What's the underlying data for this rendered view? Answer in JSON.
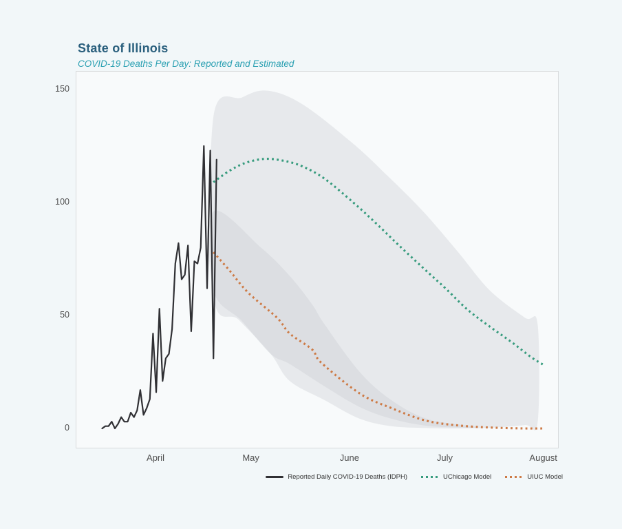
{
  "page": {
    "title": "State of Illinois",
    "subtitle": "COVID-19 Deaths Per Day: Reported and Estimated",
    "colors": {
      "background": "#f2f7f9",
      "panel_background": "#f8fafb",
      "panel_border": "#d8dadc",
      "title_text": "#2a5f7d",
      "subtitle_text": "#2ba0b2",
      "axis_text": "#4f4f4f",
      "legend_text": "#333333",
      "reported_line": "#303034",
      "uchicago_line": "#369b7d",
      "uiuc_line": "#cd7a45",
      "band_fill": "#c4c6cc"
    }
  },
  "chart_data": {
    "type": "line",
    "title": "State of Illinois",
    "subtitle": "COVID-19 Deaths Per Day: Reported and Estimated",
    "x_unit": "days since March 15, 2020",
    "grid": false,
    "legend_position": "bottom-right",
    "x_axis": {
      "ticks": [
        {
          "label": "April",
          "day": 17
        },
        {
          "label": "May",
          "day": 47
        },
        {
          "label": "June",
          "day": 78
        },
        {
          "label": "July",
          "day": 108
        },
        {
          "label": "August",
          "day": 139
        }
      ]
    },
    "y_axis": {
      "ticks": [
        0,
        50,
        100,
        150
      ],
      "range": [
        0,
        158
      ]
    },
    "series": [
      {
        "name": "Reported Daily COVID-19 Deaths (IDPH)",
        "style": "solid",
        "color": "#303034",
        "start_day": 0,
        "step": 1,
        "values": [
          0,
          1,
          1,
          3,
          0,
          2,
          5,
          3,
          3,
          7,
          5,
          8,
          17,
          6,
          9,
          13,
          42,
          16,
          53,
          21,
          31,
          33,
          44,
          73,
          82,
          66,
          68,
          81,
          43,
          74,
          73,
          80,
          125,
          62,
          123,
          31,
          119
        ]
      },
      {
        "name": "UChicago Model",
        "style": "dotted",
        "color": "#369b7d",
        "points": [
          [
            35,
            109
          ],
          [
            40,
            114
          ],
          [
            45,
            117.5
          ],
          [
            51,
            119.3
          ],
          [
            57,
            118.5
          ],
          [
            63,
            116
          ],
          [
            70,
            110.5
          ],
          [
            79,
            100
          ],
          [
            86,
            91
          ],
          [
            93,
            81.5
          ],
          [
            101,
            71
          ],
          [
            108,
            62
          ],
          [
            115,
            52.5
          ],
          [
            122,
            45
          ],
          [
            129,
            38
          ],
          [
            135,
            31.5
          ],
          [
            139,
            28
          ]
        ]
      },
      {
        "name": "UIUC Model",
        "style": "dotted",
        "color": "#cd7a45",
        "points": [
          [
            35,
            78
          ],
          [
            40,
            70
          ],
          [
            46,
            60
          ],
          [
            55,
            49
          ],
          [
            59,
            42
          ],
          [
            66,
            35
          ],
          [
            69,
            29
          ],
          [
            81,
            15.5
          ],
          [
            91,
            9
          ],
          [
            102,
            3.4
          ],
          [
            113,
            1.2
          ],
          [
            124,
            0.3
          ],
          [
            133,
            0
          ],
          [
            139,
            0
          ]
        ]
      }
    ],
    "bands": [
      {
        "name": "UChicago Model uncertainty band",
        "color": "#c4c6cc",
        "opacity": 0.32,
        "upper": [
          [
            35,
            138
          ],
          [
            44,
            146.5
          ],
          [
            52,
            149.5
          ],
          [
            63,
            143.5
          ],
          [
            79,
            126
          ],
          [
            90,
            111.5
          ],
          [
            101,
            96
          ],
          [
            112,
            78
          ],
          [
            122,
            61
          ],
          [
            133,
            49
          ],
          [
            137,
            46
          ]
        ],
        "lower": [
          [
            35,
            59
          ],
          [
            43,
            48
          ],
          [
            53,
            33
          ],
          [
            59,
            21
          ],
          [
            70,
            12.5
          ],
          [
            81,
            4.3
          ],
          [
            91,
            1
          ],
          [
            102,
            0.2
          ],
          [
            112,
            0
          ],
          [
            122,
            0.3
          ],
          [
            133,
            1.5
          ],
          [
            137,
            2.7
          ]
        ]
      },
      {
        "name": "UIUC Model uncertainty band",
        "color": "#c4c6cc",
        "opacity": 0.32,
        "upper": [
          [
            35,
            96
          ],
          [
            50,
            80
          ],
          [
            59,
            67.5
          ],
          [
            66,
            55
          ],
          [
            70,
            46
          ],
          [
            81,
            25
          ],
          [
            91,
            12.5
          ],
          [
            102,
            4.3
          ],
          [
            115,
            1.2
          ],
          [
            118,
            0.8
          ]
        ],
        "lower": [
          [
            35,
            61
          ],
          [
            44,
            47.5
          ],
          [
            53,
            33
          ],
          [
            59,
            28.5
          ],
          [
            70,
            18.6
          ],
          [
            81,
            9.5
          ],
          [
            91,
            4.3
          ],
          [
            102,
            1.2
          ],
          [
            115,
            0.3
          ],
          [
            118,
            0.6
          ]
        ]
      }
    ]
  }
}
